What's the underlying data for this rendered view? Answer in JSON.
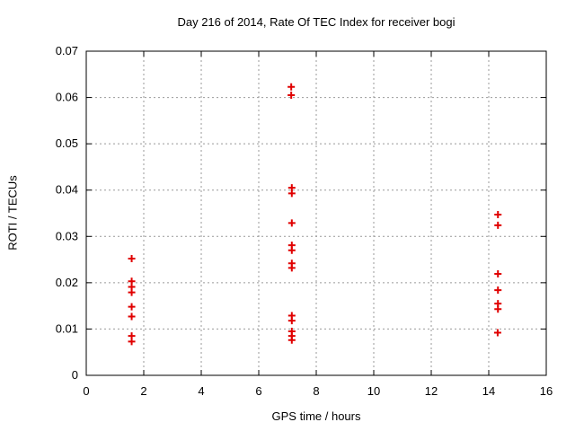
{
  "figure": {
    "background": "#ffffff",
    "text_color": "#000000"
  },
  "chart_data": {
    "type": "scatter",
    "title": "Day 216 of 2014, Rate Of TEC Index for receiver bogi",
    "xlabel": "GPS time / hours",
    "ylabel": "ROTI / TECUs",
    "xlim": [
      0,
      16
    ],
    "ylim": [
      0,
      0.07
    ],
    "x_ticks": [
      0,
      2,
      4,
      6,
      8,
      10,
      12,
      14,
      16
    ],
    "x_tick_labels": [
      "0",
      "2",
      "4",
      "6",
      "8",
      "10",
      "12",
      "14",
      "16"
    ],
    "y_ticks": [
      0,
      0.01,
      0.02,
      0.03,
      0.04,
      0.05,
      0.06,
      0.07
    ],
    "y_tick_labels": [
      "0",
      "0.01",
      "0.02",
      "0.03",
      "0.04",
      "0.05",
      "0.06",
      "0.07"
    ],
    "grid": true,
    "grid_style": "dashed",
    "grid_color": "#999999",
    "axis_color": "#000000",
    "legend": "none",
    "marker": {
      "shape": "plus",
      "color": "#e00000",
      "size": 9,
      "stroke_width": 2
    },
    "series": [
      {
        "name": "ROTI",
        "points": [
          [
            1.58,
            0.0252
          ],
          [
            1.58,
            0.0203
          ],
          [
            1.58,
            0.0191
          ],
          [
            1.58,
            0.0179
          ],
          [
            1.58,
            0.0148
          ],
          [
            1.58,
            0.0127
          ],
          [
            1.58,
            0.0085
          ],
          [
            1.58,
            0.0073
          ],
          [
            7.13,
            0.0623
          ],
          [
            7.13,
            0.0605
          ],
          [
            7.15,
            0.0405
          ],
          [
            7.15,
            0.0393
          ],
          [
            7.15,
            0.0329
          ],
          [
            7.15,
            0.0281
          ],
          [
            7.15,
            0.027
          ],
          [
            7.15,
            0.0242
          ],
          [
            7.15,
            0.0232
          ],
          [
            7.15,
            0.0129
          ],
          [
            7.15,
            0.0118
          ],
          [
            7.15,
            0.0095
          ],
          [
            7.15,
            0.0085
          ],
          [
            7.15,
            0.0076
          ],
          [
            14.32,
            0.0347
          ],
          [
            14.32,
            0.0324
          ],
          [
            14.32,
            0.0219
          ],
          [
            14.32,
            0.0184
          ],
          [
            14.32,
            0.0155
          ],
          [
            14.32,
            0.0143
          ],
          [
            14.31,
            0.0092
          ]
        ]
      }
    ]
  }
}
